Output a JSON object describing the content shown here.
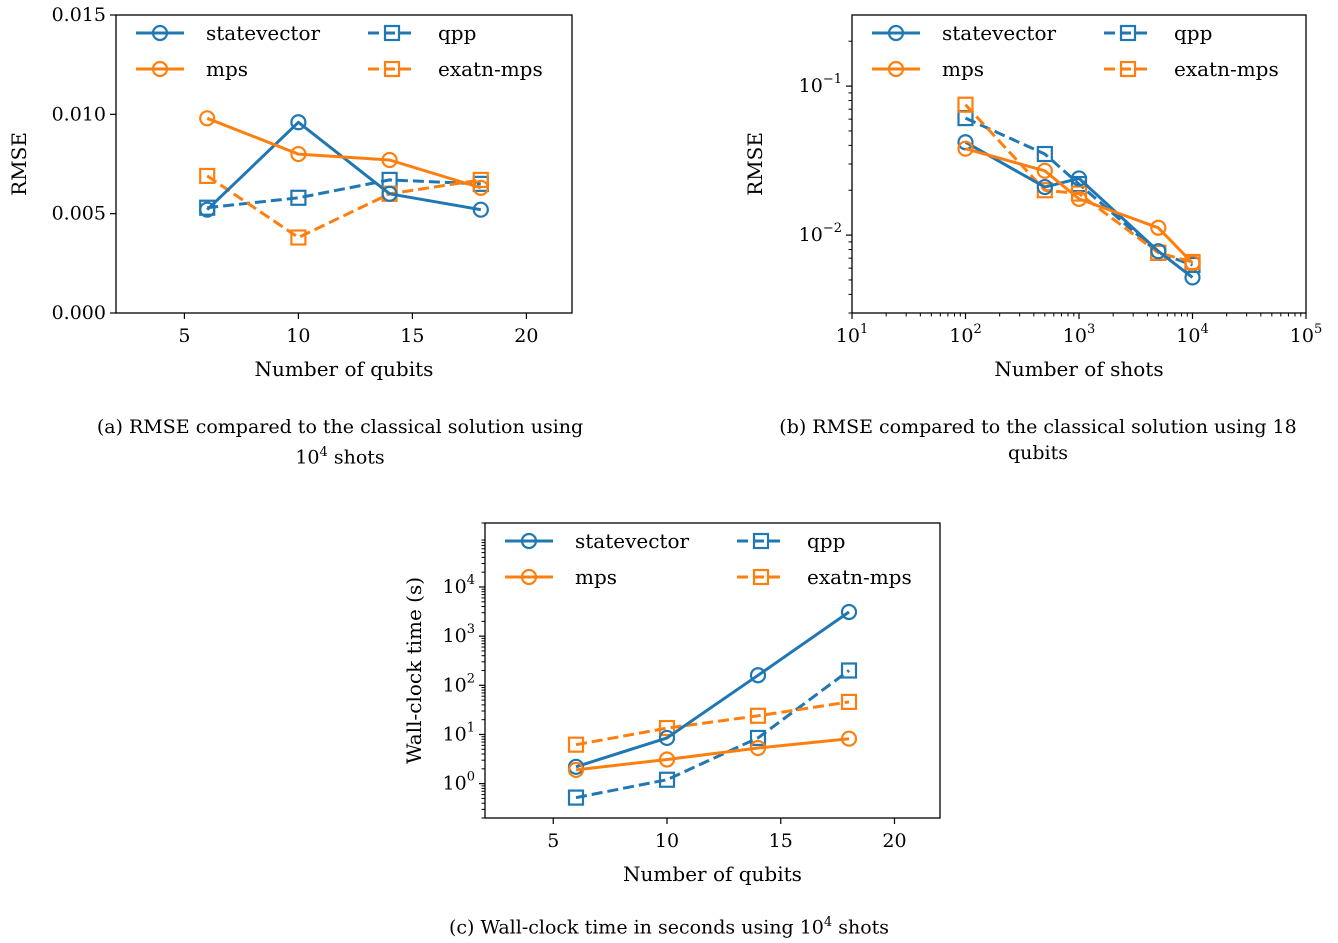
{
  "chart_data": [
    {
      "id": "a",
      "type": "line",
      "xlabel": "Number of qubits",
      "ylabel": "RMSE",
      "xlim": [
        2,
        22
      ],
      "ylim": [
        0,
        0.015
      ],
      "xscale": "linear",
      "yscale": "linear",
      "xticks": [
        5,
        10,
        15,
        20
      ],
      "xtick_labels": [
        "5",
        "10",
        "15",
        "20"
      ],
      "yticks": [
        0,
        0.005,
        0.01,
        0.015
      ],
      "ytick_labels": [
        "0.000",
        "0.005",
        "0.010",
        "0.015"
      ],
      "legend_position": "top",
      "caption": "(a) RMSE compared to the classical solution using 10^4 shots",
      "series": [
        {
          "name": "statevector",
          "x": [
            6,
            10,
            14,
            18
          ],
          "y": [
            0.0052,
            0.0096,
            0.006,
            0.0052
          ]
        },
        {
          "name": "mps",
          "x": [
            6,
            10,
            14,
            18
          ],
          "y": [
            0.0098,
            0.008,
            0.0077,
            0.0063
          ]
        },
        {
          "name": "qpp",
          "x": [
            6,
            10,
            14,
            18
          ],
          "y": [
            0.0053,
            0.0058,
            0.0067,
            0.0065
          ]
        },
        {
          "name": "exatn-mps",
          "x": [
            6,
            10,
            14,
            18
          ],
          "y": [
            0.0069,
            0.0038,
            0.006,
            0.0067
          ]
        }
      ]
    },
    {
      "id": "b",
      "type": "line",
      "xlabel": "Number of shots",
      "ylabel": "RMSE",
      "xlim": [
        10,
        100000
      ],
      "ylim": [
        0.003,
        0.3
      ],
      "xscale": "log",
      "yscale": "log",
      "xtick_exponents": [
        1,
        2,
        3,
        4,
        5
      ],
      "ytick_exponents": [
        -2,
        -1
      ],
      "legend_position": "top",
      "caption": "(b) RMSE compared to the classical solution using 18 qubits",
      "series": [
        {
          "name": "statevector",
          "x": [
            100,
            500,
            1000,
            5000,
            10000
          ],
          "y": [
            0.042,
            0.021,
            0.024,
            0.0078,
            0.0052
          ]
        },
        {
          "name": "mps",
          "x": [
            100,
            500,
            1000,
            5000,
            10000
          ],
          "y": [
            0.038,
            0.027,
            0.0175,
            0.0112,
            0.0065
          ]
        },
        {
          "name": "qpp",
          "x": [
            100,
            500,
            1000,
            5000,
            10000
          ],
          "y": [
            0.061,
            0.035,
            0.022,
            0.0076,
            0.0063
          ]
        },
        {
          "name": "exatn-mps",
          "x": [
            100,
            500,
            1000,
            5000,
            10000
          ],
          "y": [
            0.075,
            0.02,
            0.019,
            0.0076,
            0.0066
          ]
        }
      ]
    },
    {
      "id": "c",
      "type": "line",
      "xlabel": "Number of qubits",
      "ylabel": "Wall-clock time (s)",
      "xlim": [
        2,
        22
      ],
      "ylim": [
        0.2,
        200000
      ],
      "xscale": "linear",
      "yscale": "log",
      "xticks": [
        5,
        10,
        15,
        20
      ],
      "xtick_labels": [
        "5",
        "10",
        "15",
        "20"
      ],
      "ytick_exponents": [
        0,
        1,
        2,
        3,
        4
      ],
      "legend_position": "top",
      "caption": "(c) Wall-clock time in seconds using 10^4 shots",
      "series": [
        {
          "name": "statevector",
          "x": [
            6,
            10,
            14,
            18
          ],
          "y": [
            2.2,
            8.5,
            160,
            3100
          ]
        },
        {
          "name": "mps",
          "x": [
            6,
            10,
            14,
            18
          ],
          "y": [
            1.9,
            3.1,
            5.3,
            8.2
          ]
        },
        {
          "name": "qpp",
          "x": [
            6,
            10,
            14,
            18
          ],
          "y": [
            0.52,
            1.2,
            8.5,
            200
          ]
        },
        {
          "name": "exatn-mps",
          "x": [
            6,
            10,
            14,
            18
          ],
          "y": [
            6.2,
            13.5,
            24,
            46
          ]
        }
      ]
    }
  ],
  "styles": {
    "statevector": {
      "color": "#1f77b4",
      "dash": "solid",
      "marker": "circle"
    },
    "mps": {
      "color": "#ff7f0e",
      "dash": "solid",
      "marker": "circle"
    },
    "qpp": {
      "color": "#1f77b4",
      "dash": "dashed",
      "marker": "square"
    },
    "exatn-mps": {
      "color": "#ff7f0e",
      "dash": "dashed",
      "marker": "square"
    }
  },
  "captions": {
    "a_line1": "(a) RMSE compared to the classical solution using",
    "a_line2_base": "10",
    "a_line2_sup": "4",
    "a_line2_rest": " shots",
    "b_line1": "(b) RMSE compared to the classical solution using 18",
    "b_line2": "qubits",
    "c_pre": "(c) Wall-clock time in seconds using 10",
    "c_sup": "4",
    "c_post": " shots"
  }
}
